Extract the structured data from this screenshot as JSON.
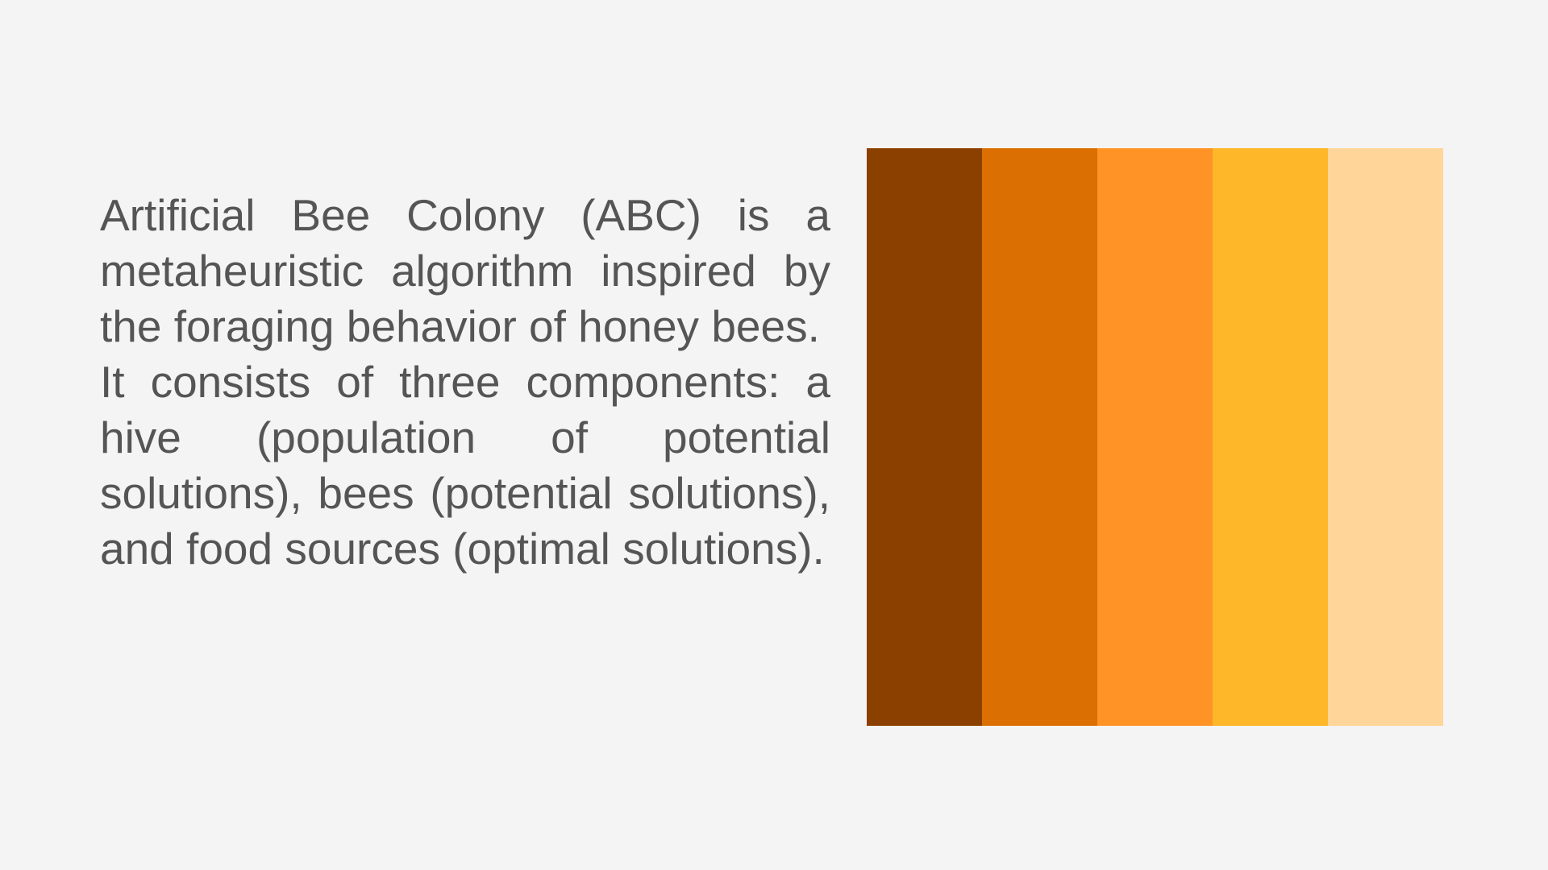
{
  "paragraphs": [
    "Artificial Bee Colony (ABC) is a metaheuristic algorithm inspired by the foraging behavior of honey bees.",
    "It consists of three components: a hive (population of potential solutions), bees (potential solutions), and food sources (optimal solutions)."
  ],
  "swatch_colors": [
    "#8b4000",
    "#dc6f02",
    "#ff9326",
    "#fdb728",
    "#ffd599"
  ],
  "background_color": "#f4f4f4",
  "text_color": "#555555"
}
